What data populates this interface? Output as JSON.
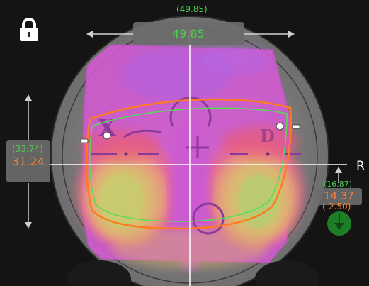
{
  "top": {
    "value_small": "(49.85)",
    "value_main": "49.85"
  },
  "left": {
    "value_small": "(33.74)",
    "value_main": "31.24"
  },
  "right": {
    "value_small": "(16.87)",
    "value_main": "14.37",
    "value_delta": "(-2.50)"
  },
  "side_label": "R",
  "lens_marks": {
    "left_mark": "X",
    "right_mark": "D"
  },
  "icons": {
    "lock": "lock-icon",
    "down": "down-arrow-icon"
  },
  "colors": {
    "value_green": "#4ccf4c",
    "value_orange": "#ff8030",
    "frame_orange": "#ff7a20",
    "frame_green": "#55dd55",
    "crosshair": "#ffffff"
  }
}
